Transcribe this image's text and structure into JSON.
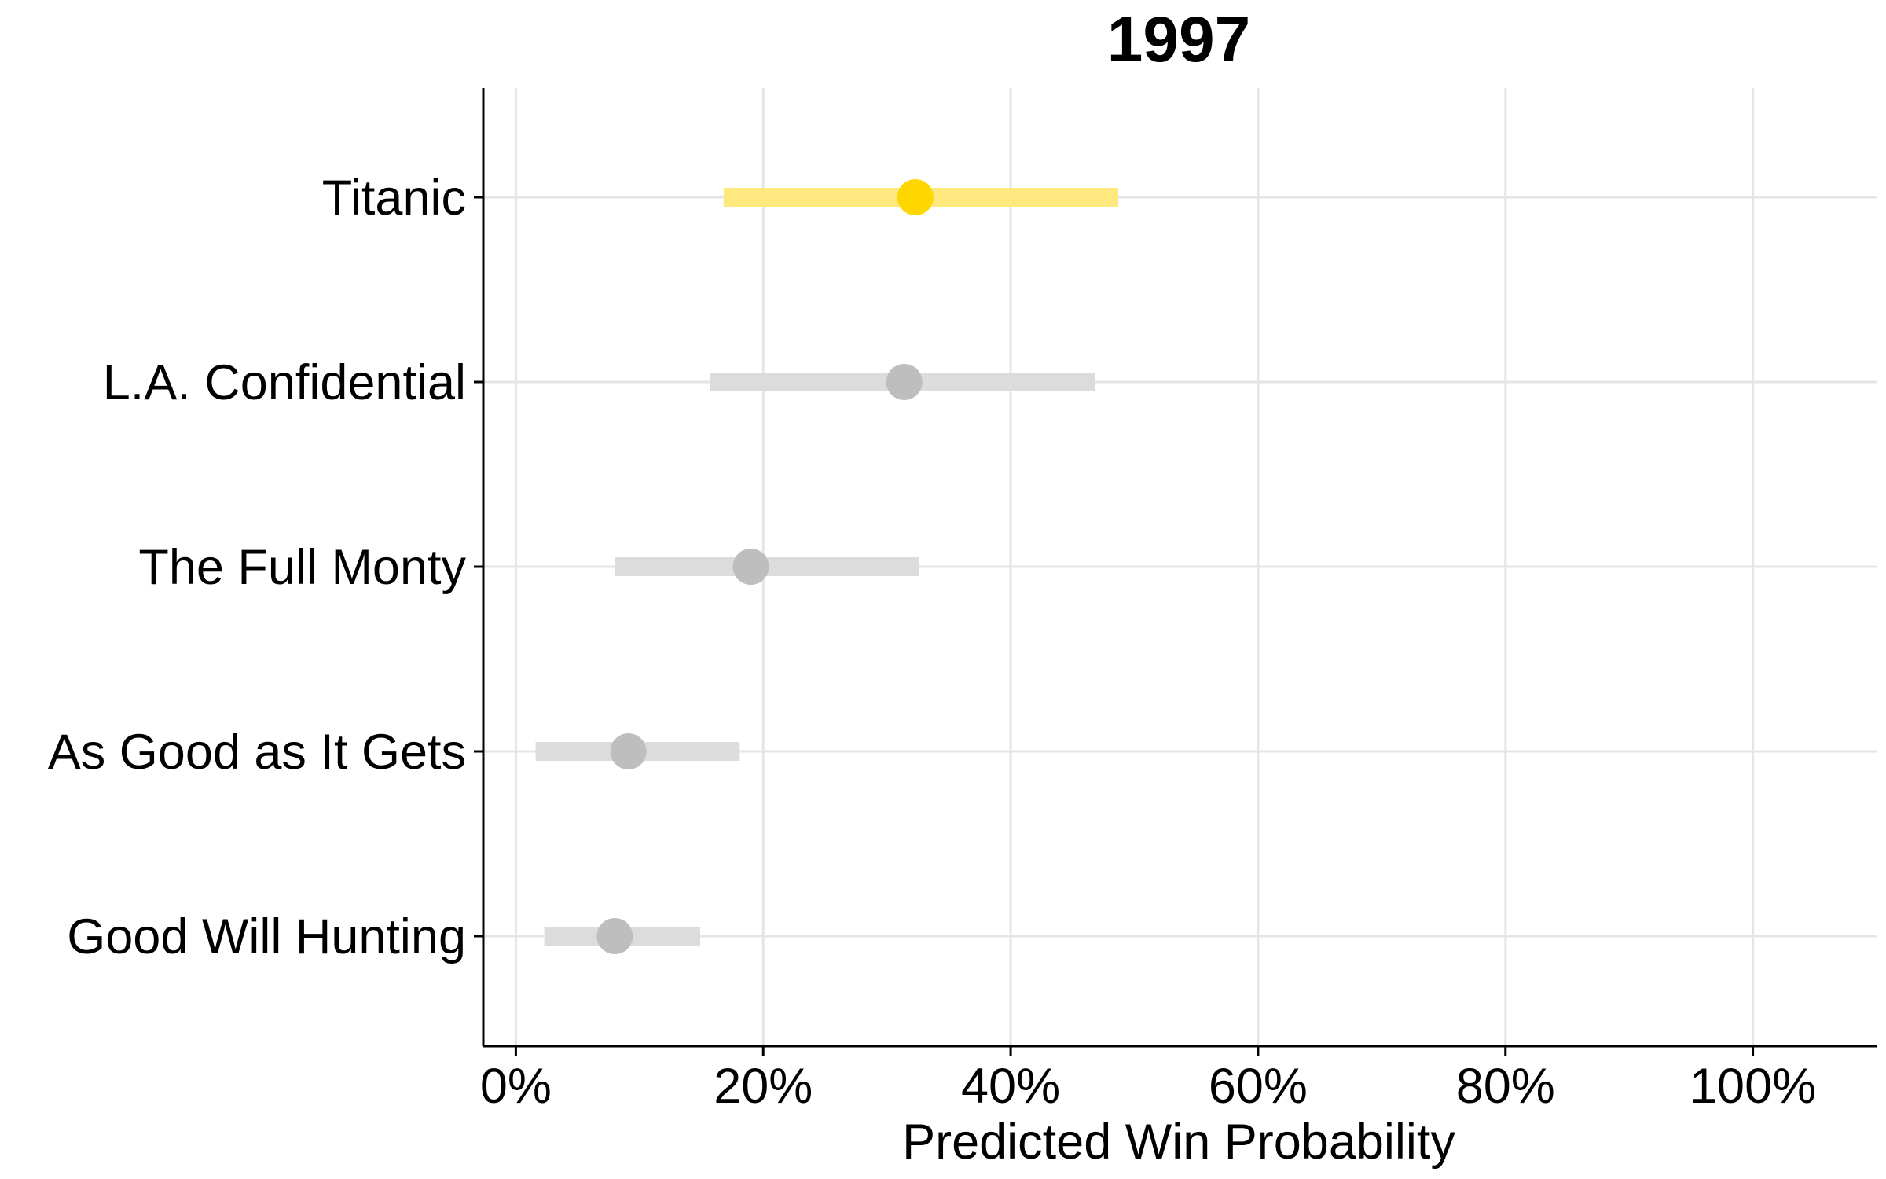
{
  "chart_data": {
    "type": "dot-interval",
    "title": "1997",
    "xlabel": "Predicted Win Probability",
    "ylabel": "",
    "xlim": [
      -0.0263,
      1.1
    ],
    "xticks": [
      0,
      0.2,
      0.4,
      0.6,
      0.8,
      1.0
    ],
    "xtick_labels": [
      "0%",
      "20%",
      "40%",
      "60%",
      "80%",
      "100%"
    ],
    "grid": "major x and y",
    "categories": [
      "Titanic",
      "L.A. Confidential",
      "The Full Monty",
      "As Good as It Gets",
      "Good Will Hunting"
    ],
    "series": [
      {
        "category": "Titanic",
        "estimate": 0.323,
        "low": 0.168,
        "high": 0.487,
        "winner": true
      },
      {
        "category": "L.A. Confidential",
        "estimate": 0.314,
        "low": 0.157,
        "high": 0.468,
        "winner": false
      },
      {
        "category": "The Full Monty",
        "estimate": 0.19,
        "low": 0.08,
        "high": 0.326,
        "winner": false
      },
      {
        "category": "As Good as It Gets",
        "estimate": 0.091,
        "low": 0.016,
        "high": 0.181,
        "winner": false
      },
      {
        "category": "Good Will Hunting",
        "estimate": 0.08,
        "low": 0.023,
        "high": 0.149,
        "winner": false
      }
    ],
    "colors": {
      "winner_point": "#FFD700",
      "winner_interval": "#FFE97F",
      "other_point": "#BEBEBE",
      "other_interval": "#DCDCDC",
      "grid": "#E5E5E5",
      "axis": "#000000"
    }
  }
}
